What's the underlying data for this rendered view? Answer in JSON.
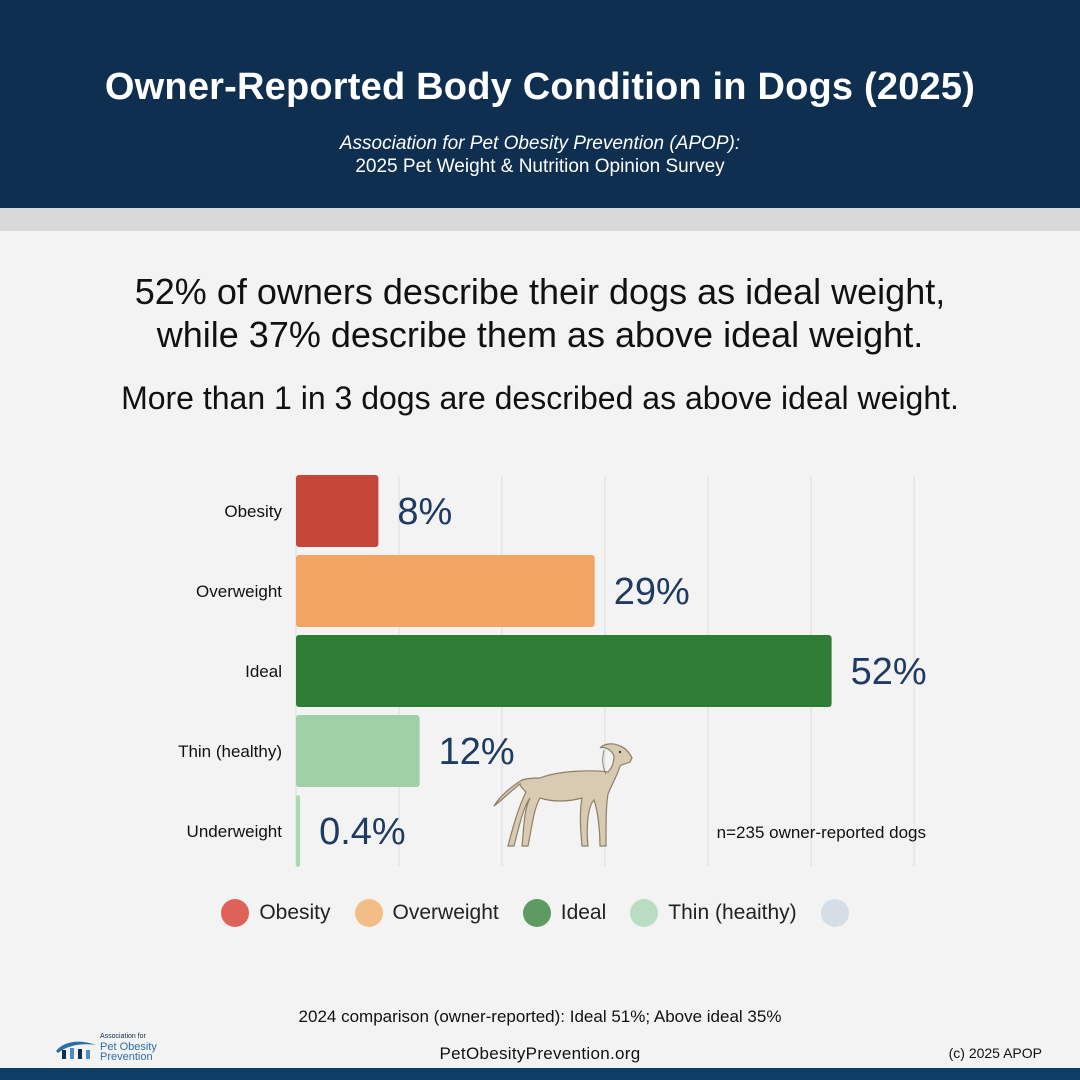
{
  "header": {
    "title": "Owner-Reported Body Condition in Dogs (2025)",
    "subtitle_line1": "Association for Pet Obesity Prevention (APOP):",
    "subtitle_line2": "2025 Pet Weight & Nutrition Opinion Survey"
  },
  "headline": {
    "line1": "52% of owners describe their dogs as ideal weight,",
    "line2": "while 37% describe them as above ideal weight."
  },
  "callout": "More than 1 in 3 dogs are described as above ideal weight.",
  "chart_data": {
    "type": "bar",
    "orientation": "horizontal",
    "categories": [
      "Obesity",
      "Overweight",
      "Ideal",
      "Thin (healthy)",
      "Underweight"
    ],
    "values": [
      8,
      29,
      52,
      12,
      0.4
    ],
    "data_labels": [
      "8%",
      "29%",
      "52%",
      "12%",
      "0.4%"
    ],
    "colors": [
      "#c4473a",
      "#f2a463",
      "#2f7d34",
      "#9fd0a6",
      "#a8d8b0"
    ],
    "xlim": [
      0,
      60
    ],
    "grid": true,
    "title": "",
    "xlabel": "",
    "ylabel": "",
    "annotation": "n=235 owner-reported dogs",
    "legend_position": "bottom"
  },
  "legend": [
    {
      "label": "Obesity",
      "color": "#df6259"
    },
    {
      "label": "Overweight",
      "color": "#f3bd88"
    },
    {
      "label": "Ideal",
      "color": "#5e9a62"
    },
    {
      "label": "Thin (heaithy)",
      "color": "#b9dcc3"
    },
    {
      "label": "",
      "color": "#d5dde6"
    }
  ],
  "footer": {
    "comparison": "2024 comparison (owner-reported): Ideal 51%; Above ideal 35%",
    "website": "PetObesityPrevention.org",
    "copyright": "(c) 2025 APOP",
    "logo_line1": "Association for",
    "logo_line2": "Pet Obesity",
    "logo_line3": "Prevention"
  }
}
